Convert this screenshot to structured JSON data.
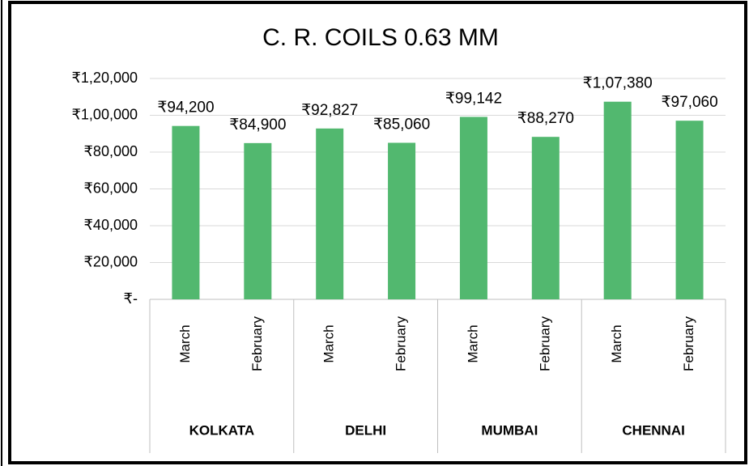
{
  "chart_data": {
    "type": "bar",
    "title": "C. R. COILS 0.63 MM",
    "categories": [
      "March",
      "February",
      "March",
      "February",
      "March",
      "February",
      "March",
      "February"
    ],
    "groups": [
      "KOLKATA",
      "DELHI",
      "MUMBAI",
      "CHENNAI"
    ],
    "values": [
      94200,
      84900,
      92827,
      85060,
      99142,
      88270,
      107380,
      97060
    ],
    "value_labels": [
      "₹94,200",
      "₹84,900",
      "₹92,827",
      "₹85,060",
      "₹99,142",
      "₹88,270",
      "₹1,07,380",
      "₹97,060"
    ],
    "color": "#52b86f",
    "ylim": [
      0,
      120000
    ],
    "yticks": [
      {
        "value": 0,
        "label": "₹-"
      },
      {
        "value": 20000,
        "label": "₹20,000"
      },
      {
        "value": 40000,
        "label": "₹40,000"
      },
      {
        "value": 60000,
        "label": "₹60,000"
      },
      {
        "value": 80000,
        "label": "₹80,000"
      },
      {
        "value": 100000,
        "label": "₹1,00,000"
      },
      {
        "value": 120000,
        "label": "₹1,20,000"
      }
    ],
    "grid": true
  }
}
